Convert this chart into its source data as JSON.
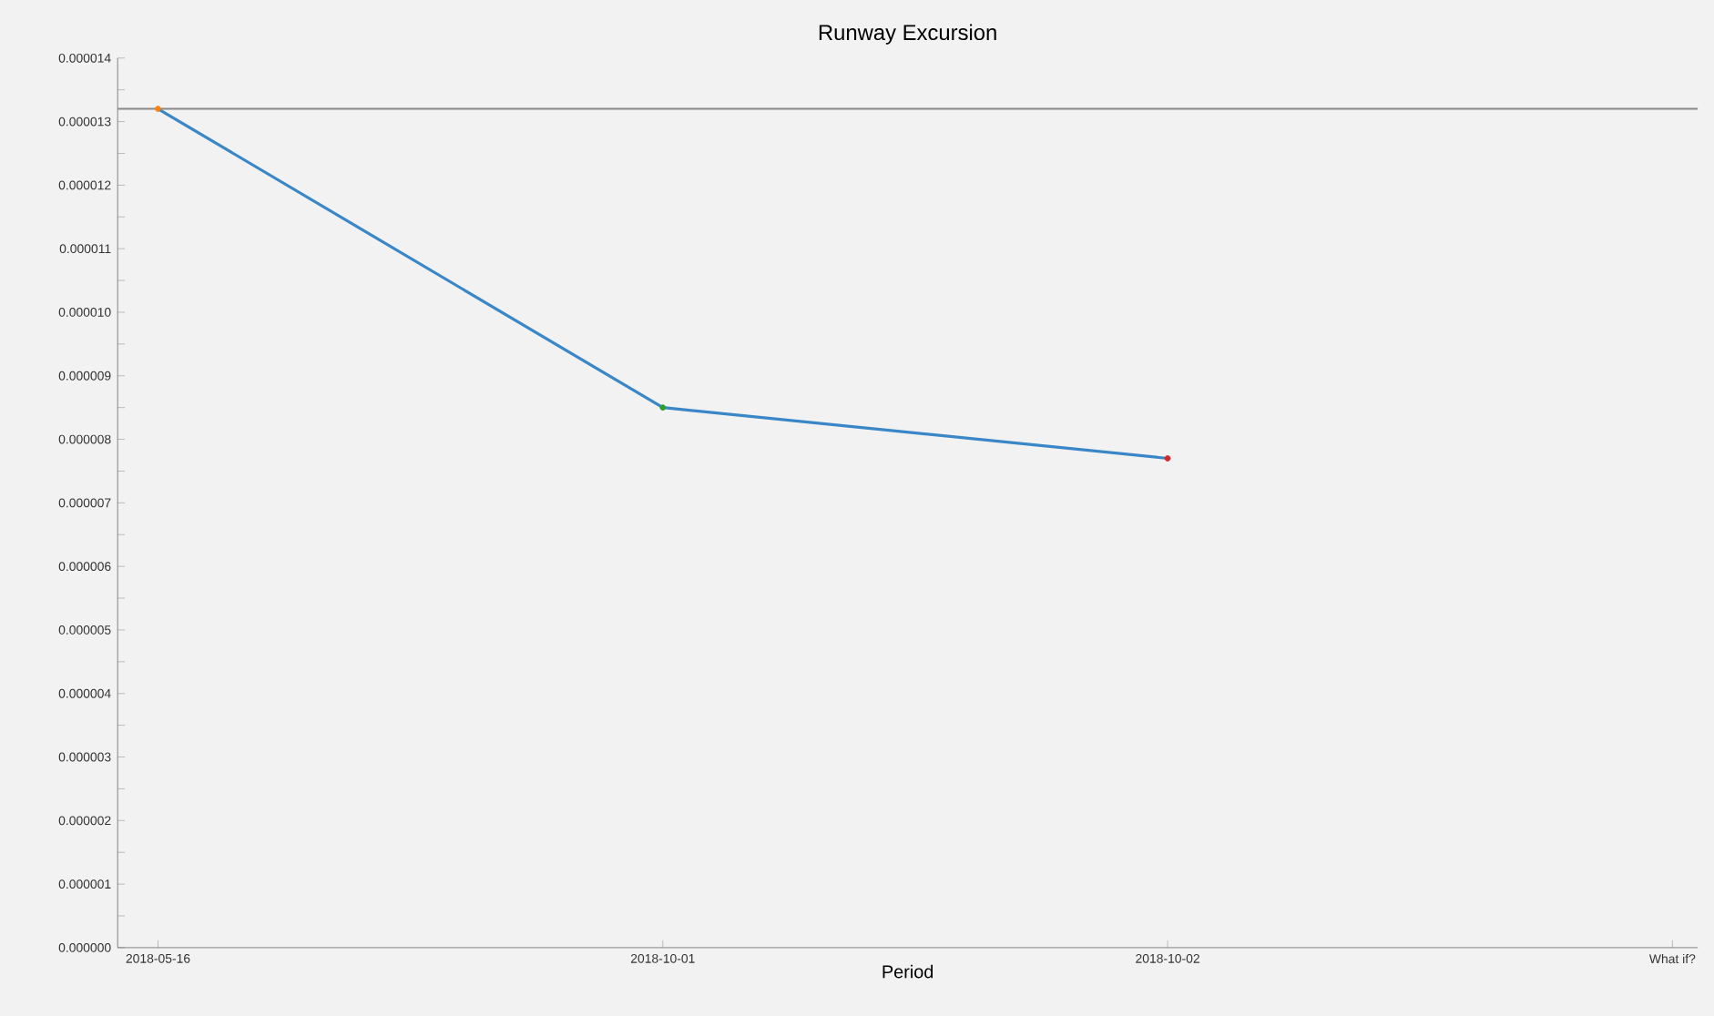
{
  "chart_data": {
    "type": "line",
    "title": "Runway Excursion",
    "xlabel": "Period",
    "categories": [
      "2018-05-16",
      "2018-10-01",
      "2018-10-02",
      "What if?"
    ],
    "series": [
      {
        "color": "#3a87c8",
        "colors": [
          "#ff7f0e",
          "#2ca02c",
          "#d62728",
          null
        ],
        "values": [
          1.32e-05,
          8.5e-06,
          7.7e-06,
          null
        ]
      }
    ],
    "ylim": [
      0,
      1.4e-05
    ],
    "yticks": [
      {
        "value": 0,
        "label": "0.000000"
      },
      {
        "value": 5e-07,
        "label": null
      },
      {
        "value": 1e-06,
        "label": "0.000001"
      },
      {
        "value": 1.5e-06,
        "label": null
      },
      {
        "value": 2e-06,
        "label": "0.000002"
      },
      {
        "value": 2.5e-06,
        "label": null
      },
      {
        "value": 3e-06,
        "label": "0.000003"
      },
      {
        "value": 3.5e-06,
        "label": null
      },
      {
        "value": 4e-06,
        "label": "0.000004"
      },
      {
        "value": 4.5e-06,
        "label": null
      },
      {
        "value": 5e-06,
        "label": "0.000005"
      },
      {
        "value": 5.5e-06,
        "label": null
      },
      {
        "value": 6e-06,
        "label": "0.000006"
      },
      {
        "value": 6.5e-06,
        "label": null
      },
      {
        "value": 7e-06,
        "label": "0.000007"
      },
      {
        "value": 7.5e-06,
        "label": null
      },
      {
        "value": 8e-06,
        "label": "0.000008"
      },
      {
        "value": 8.5e-06,
        "label": null
      },
      {
        "value": 9e-06,
        "label": "0.000009"
      },
      {
        "value": 9.5e-06,
        "label": null
      },
      {
        "value": 1e-05,
        "label": "0.000010"
      },
      {
        "value": 1.05e-05,
        "label": null
      },
      {
        "value": 1.1e-05,
        "label": "0.000011"
      },
      {
        "value": 1.15e-05,
        "label": null
      },
      {
        "value": 1.2e-05,
        "label": "0.000012"
      },
      {
        "value": 1.25e-05,
        "label": null
      },
      {
        "value": 1.3e-05,
        "label": "0.000013"
      },
      {
        "value": 1.35e-05,
        "label": null
      },
      {
        "value": 1.4e-05,
        "label": "0.000014"
      }
    ],
    "ref_lines": [
      {
        "axis": "y",
        "value": 1.32e-05,
        "color": "#888888"
      }
    ],
    "marker": "circle",
    "line_style": "solid"
  }
}
